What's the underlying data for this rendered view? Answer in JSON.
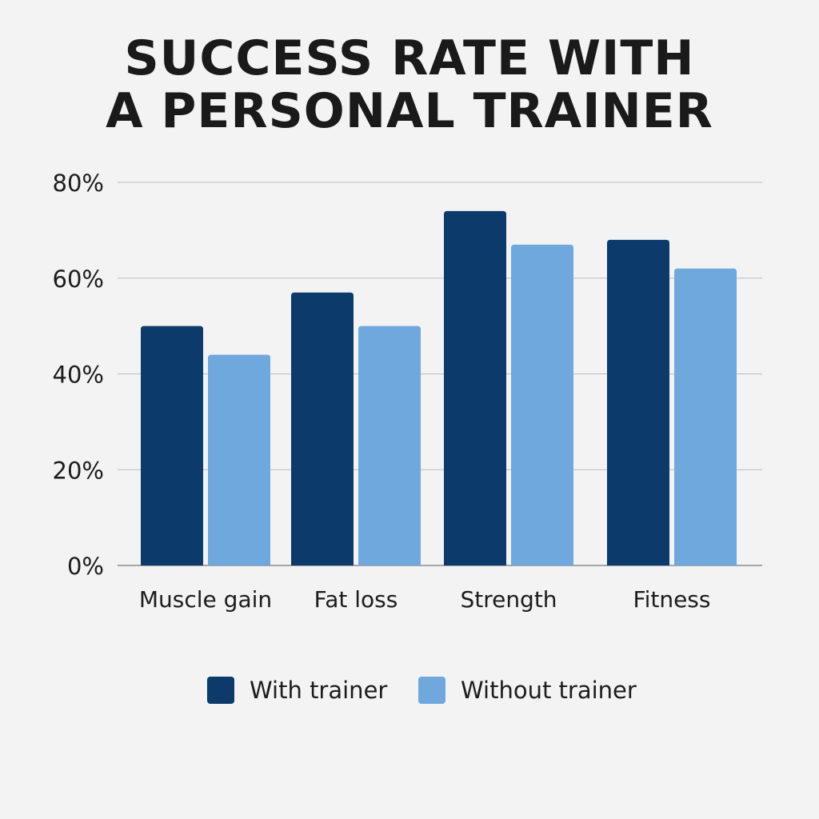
{
  "chart_data": {
    "type": "bar",
    "title": [
      "SUCCESS RATE WITH",
      "A PERSONAL TRAINER"
    ],
    "categories": [
      "Muscle gain",
      "Fat loss",
      "Strength",
      "Fitness"
    ],
    "series": [
      {
        "name": "With trainer",
        "color": "#0b3a6b",
        "values": [
          50,
          57,
          74,
          68
        ]
      },
      {
        "name": "Without trainer",
        "color": "#6fa8dc",
        "values": [
          44,
          50,
          67,
          62
        ]
      }
    ],
    "ylim": [
      0,
      80
    ],
    "yticks": [
      0,
      20,
      40,
      60,
      80
    ],
    "ytick_labels": [
      "0%",
      "20%",
      "40%",
      "60%",
      "80%"
    ],
    "grid": true,
    "legend_position": "bottom"
  }
}
